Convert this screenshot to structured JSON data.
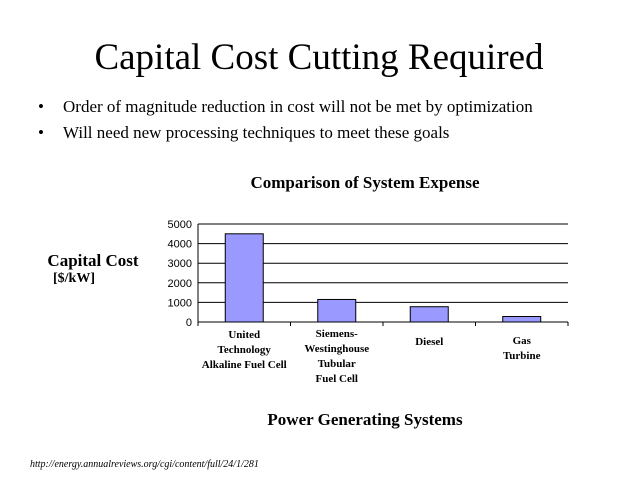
{
  "slide": {
    "title": "Capital Cost Cutting Required",
    "bullets": [
      "Order of magnitude reduction in cost will not be met by optimization",
      "Will need new processing techniques to meet these goals"
    ],
    "bullet_marker": "•",
    "source": "http://energy.annualreviews.org/cgi/content/full/24/1/281"
  },
  "chart_data": {
    "type": "bar",
    "title": "Comparison of System Expense",
    "ylabel": "Capital Cost",
    "yunit": "[$/kW]",
    "xlabel": "Power Generating Systems",
    "categories": [
      "United Technology Alkaline Fuel Cell",
      "Siemens-Westinghouse Tubular Fuel Cell",
      "Diesel",
      "Gas Turbine"
    ],
    "category_label_lines": [
      [
        "United",
        "Technology",
        "Alkaline Fuel Cell"
      ],
      [
        "Siemens-",
        "Westinghouse",
        "Tubular",
        "Fuel Cell"
      ],
      [
        "Diesel"
      ],
      [
        "Gas",
        "Turbine"
      ]
    ],
    "values": [
      4500,
      1150,
      780,
      280
    ],
    "ylim": [
      0,
      5000
    ],
    "yticks": [
      "0",
      "1000",
      "2000",
      "3000",
      "4000",
      "5000"
    ],
    "grid": true,
    "bar_color": "#9999ff"
  }
}
